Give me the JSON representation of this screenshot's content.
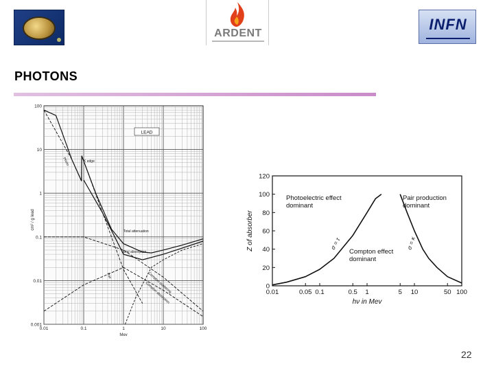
{
  "header": {
    "title": "PHOTONS",
    "logos": {
      "left": {
        "icon": "medal-logo-icon"
      },
      "middle": {
        "icon": "ardent-flame-logo-icon",
        "text": "ARDENT"
      },
      "right": {
        "icon": "infn-logo-icon",
        "text": "INFN"
      }
    },
    "rule_color": "#c98cc9"
  },
  "slide_number": "22",
  "chart_data": [
    {
      "type": "line",
      "title": "",
      "legend_text": "LEAD",
      "xlabel": "Mev",
      "ylabel": "cm² / g lead",
      "x_scale": "log",
      "y_scale": "log",
      "xlim": [
        0.01,
        100
      ],
      "ylim": [
        0.001,
        100
      ],
      "x_ticks": [
        "0.01",
        "0.1",
        "1",
        "10",
        "100"
      ],
      "y_ticks": [
        "100",
        "10",
        "1",
        "0.1",
        "0.01",
        "0.001"
      ],
      "annotations": [
        "K edge",
        "Total absorption",
        "Total attenuation",
        "Photo",
        "Compton absorption",
        "Compton scattering",
        "Pair"
      ],
      "series": [
        {
          "name": "Total attenuation",
          "x": [
            0.01,
            0.02,
            0.05,
            0.088,
            0.089,
            0.2,
            0.5,
            1,
            3,
            5,
            10,
            30,
            100
          ],
          "y": [
            80,
            60,
            6,
            1.9,
            7.2,
            1.0,
            0.15,
            0.07,
            0.045,
            0.043,
            0.05,
            0.065,
            0.09
          ]
        },
        {
          "name": "Total absorption",
          "x": [
            0.1,
            0.3,
            1,
            3,
            10,
            100
          ],
          "y": [
            2.0,
            0.35,
            0.04,
            0.03,
            0.04,
            0.08
          ]
        },
        {
          "name": "Photo",
          "x": [
            0.01,
            0.05,
            0.088,
            0.089,
            0.3,
            1,
            3
          ],
          "y": [
            80,
            6,
            1.9,
            7.2,
            0.35,
            0.018,
            0.003
          ]
        },
        {
          "name": "Compton scattering",
          "x": [
            0.01,
            0.1,
            1,
            10,
            100
          ],
          "y": [
            0.1,
            0.1,
            0.05,
            0.012,
            0.002
          ]
        },
        {
          "name": "Compton absorption",
          "x": [
            0.01,
            0.1,
            1,
            10,
            100
          ],
          "y": [
            0.002,
            0.008,
            0.02,
            0.006,
            0.0015
          ]
        },
        {
          "name": "Pair",
          "x": [
            1.1,
            2,
            5,
            10,
            30,
            100
          ],
          "y": [
            0.001,
            0.004,
            0.02,
            0.03,
            0.05,
            0.07
          ]
        }
      ]
    },
    {
      "type": "line",
      "title": "",
      "xlabel": "hν in Mev",
      "ylabel": "Z of absorber",
      "x_scale": "log",
      "xlim": [
        0.01,
        100
      ],
      "ylim": [
        0,
        120
      ],
      "x_ticks": [
        "0.01",
        "0.05",
        "0.1",
        "0.5",
        "1",
        "5",
        "10",
        "50",
        "100"
      ],
      "y_ticks": [
        "0",
        "20",
        "40",
        "60",
        "80",
        "100",
        "120"
      ],
      "region_labels": [
        "Photoelectric effect dominant",
        "Compton effect dominant",
        "Pair production dominant"
      ],
      "curve_labels": [
        "σ = τ",
        "σ = κ"
      ],
      "series": [
        {
          "name": "σ = τ",
          "x": [
            0.01,
            0.02,
            0.05,
            0.1,
            0.2,
            0.5,
            1,
            1.5,
            2
          ],
          "y": [
            1,
            4,
            10,
            18,
            30,
            55,
            80,
            95,
            100
          ]
        },
        {
          "name": "σ = κ",
          "x": [
            5,
            7,
            10,
            15,
            20,
            30,
            50,
            100
          ],
          "y": [
            100,
            80,
            60,
            40,
            30,
            20,
            10,
            3
          ]
        }
      ]
    }
  ]
}
